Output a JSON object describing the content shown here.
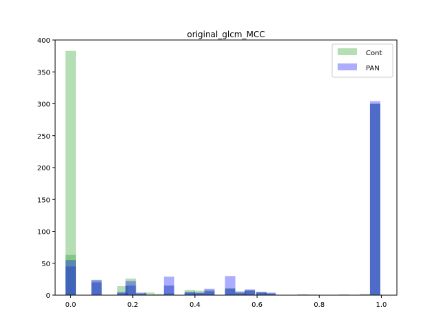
{
  "chart_data": {
    "type": "bar",
    "title": "original_glcm_MCC",
    "xlabel": "",
    "ylabel": "",
    "xlim": [
      -0.05,
      1.05
    ],
    "ylim": [
      0,
      400
    ],
    "xticks": [
      0.0,
      0.2,
      0.4,
      0.6,
      0.8,
      1.0
    ],
    "xtick_labels": [
      "0.0",
      "0.2",
      "0.4",
      "0.6",
      "0.8",
      "1.0"
    ],
    "yticks": [
      0,
      50,
      100,
      150,
      200,
      250,
      300,
      350,
      400
    ],
    "ytick_labels": [
      "0",
      "50",
      "100",
      "150",
      "200",
      "250",
      "300",
      "350",
      "400"
    ],
    "grid": false,
    "legend_position": "top-right",
    "bin_width": 0.0333,
    "series": [
      {
        "name": "Cont",
        "color": "#2ca02c",
        "opacity": 0.35,
        "bins": [
          {
            "x": 0.0,
            "value": 383
          },
          {
            "x": 0.0,
            "value": 63
          },
          {
            "x": 0.0833,
            "value": 23
          },
          {
            "x": 0.1667,
            "value": 14
          },
          {
            "x": 0.1933,
            "value": 26
          },
          {
            "x": 0.2267,
            "value": 3
          },
          {
            "x": 0.2533,
            "value": 4
          },
          {
            "x": 0.2833,
            "value": 2
          },
          {
            "x": 0.3167,
            "value": 3
          },
          {
            "x": 0.3833,
            "value": 8
          },
          {
            "x": 0.4133,
            "value": 7
          },
          {
            "x": 0.4467,
            "value": 8
          },
          {
            "x": 0.5133,
            "value": 11
          },
          {
            "x": 0.5467,
            "value": 6
          },
          {
            "x": 0.5767,
            "value": 8
          },
          {
            "x": 0.6133,
            "value": 5
          },
          {
            "x": 0.6433,
            "value": 3
          },
          {
            "x": 0.7467,
            "value": 1
          },
          {
            "x": 0.7767,
            "value": 1
          },
          {
            "x": 0.9467,
            "value": 2
          },
          {
            "x": 0.98,
            "value": 300
          }
        ]
      },
      {
        "name": "PAN",
        "color": "#0000ff",
        "opacity": 0.32,
        "bins": [
          {
            "x": 0.0,
            "value": 55
          },
          {
            "x": 0.0833,
            "value": 24
          },
          {
            "x": 0.1667,
            "value": 5
          },
          {
            "x": 0.1933,
            "value": 22
          },
          {
            "x": 0.2267,
            "value": 4
          },
          {
            "x": 0.3167,
            "value": 29
          },
          {
            "x": 0.3833,
            "value": 5
          },
          {
            "x": 0.4133,
            "value": 4
          },
          {
            "x": 0.4467,
            "value": 10
          },
          {
            "x": 0.5133,
            "value": 30
          },
          {
            "x": 0.5467,
            "value": 5
          },
          {
            "x": 0.5767,
            "value": 9
          },
          {
            "x": 0.6133,
            "value": 5
          },
          {
            "x": 0.6433,
            "value": 4
          },
          {
            "x": 0.7467,
            "value": 1
          },
          {
            "x": 0.88,
            "value": 1
          },
          {
            "x": 0.98,
            "value": 304
          }
        ]
      }
    ],
    "overlap_bins": [
      {
        "x": 0.0,
        "value": 45
      },
      {
        "x": 0.0833,
        "value": 20
      },
      {
        "x": 0.1667,
        "value": 3
      },
      {
        "x": 0.1933,
        "value": 15
      },
      {
        "x": 0.2267,
        "value": 2
      },
      {
        "x": 0.3167,
        "value": 15
      },
      {
        "x": 0.3833,
        "value": 4
      },
      {
        "x": 0.4133,
        "value": 3
      },
      {
        "x": 0.4467,
        "value": 6
      },
      {
        "x": 0.5133,
        "value": 10
      },
      {
        "x": 0.5467,
        "value": 3
      },
      {
        "x": 0.5767,
        "value": 7
      },
      {
        "x": 0.6133,
        "value": 4
      },
      {
        "x": 0.6433,
        "value": 2
      },
      {
        "x": 0.98,
        "value": 300
      }
    ],
    "overlap_color": "#2a48c4"
  }
}
